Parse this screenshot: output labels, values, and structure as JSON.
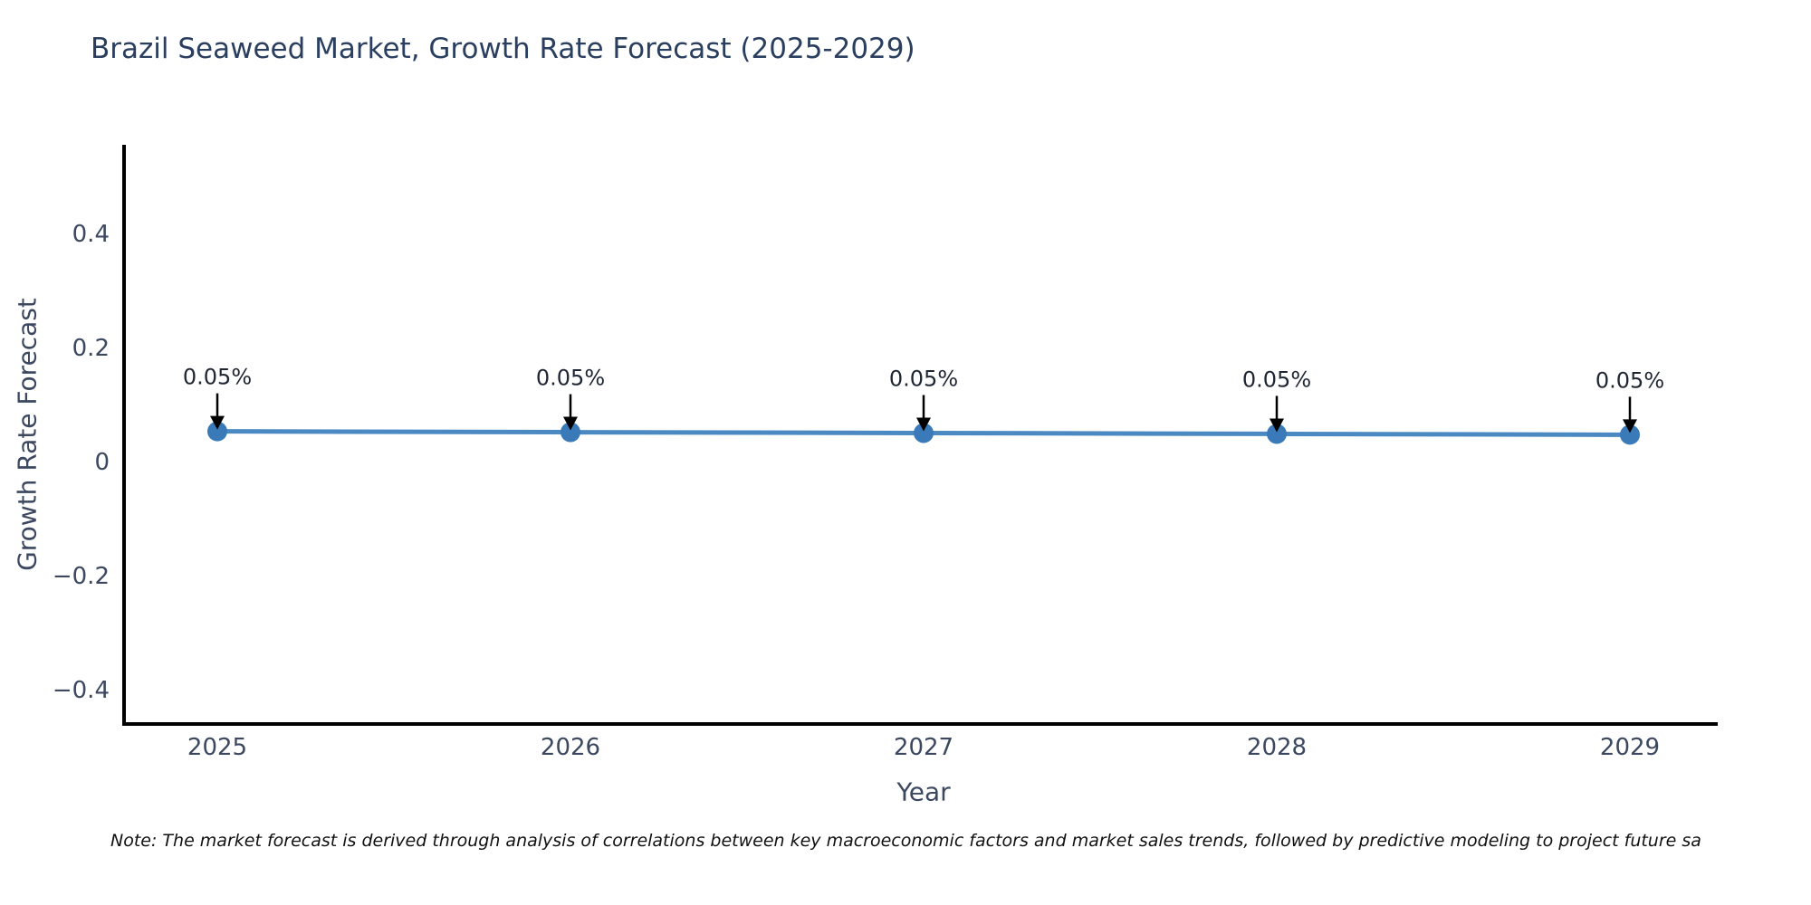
{
  "header": {
    "title": "Brazil Seaweed Market, Growth Rate Forecast (2025-2029)"
  },
  "note": {
    "text": "Note: The market forecast is derived through analysis of correlations between key macroeconomic factors and market sales trends, followed by predictive modeling to project future sa"
  },
  "chart_data": {
    "type": "line",
    "title": "Brazil Seaweed Market, Growth Rate Forecast (2025-2029)",
    "xlabel": "Year",
    "ylabel": "Growth Rate Forecast",
    "categories": [
      "2025",
      "2026",
      "2027",
      "2028",
      "2029"
    ],
    "series": [
      {
        "name": "Growth Rate Forecast",
        "values": [
          0.05,
          0.05,
          0.05,
          0.05,
          0.05
        ],
        "values_precise": [
          0.053,
          0.0515,
          0.05,
          0.0485,
          0.047
        ],
        "point_labels": [
          "0.05%",
          "0.05%",
          "0.05%",
          "0.05%",
          "0.05%"
        ]
      }
    ],
    "yticks": {
      "values": [
        0.4,
        0.2,
        0,
        -0.2,
        -0.4
      ],
      "labels": [
        "0.4",
        "0.2",
        "0",
        "−0.2",
        "−0.4"
      ]
    },
    "ylim": [
      -0.46,
      0.556
    ],
    "grid": false,
    "legend": "none",
    "colors": {
      "line": "#4a89c2",
      "marker": "#3a7ab8",
      "axis": "#000000",
      "tick_text": "#3b485f",
      "title_text": "#2a3f5f",
      "annotation_text": "#1f2633",
      "arrow": "#000000"
    }
  }
}
